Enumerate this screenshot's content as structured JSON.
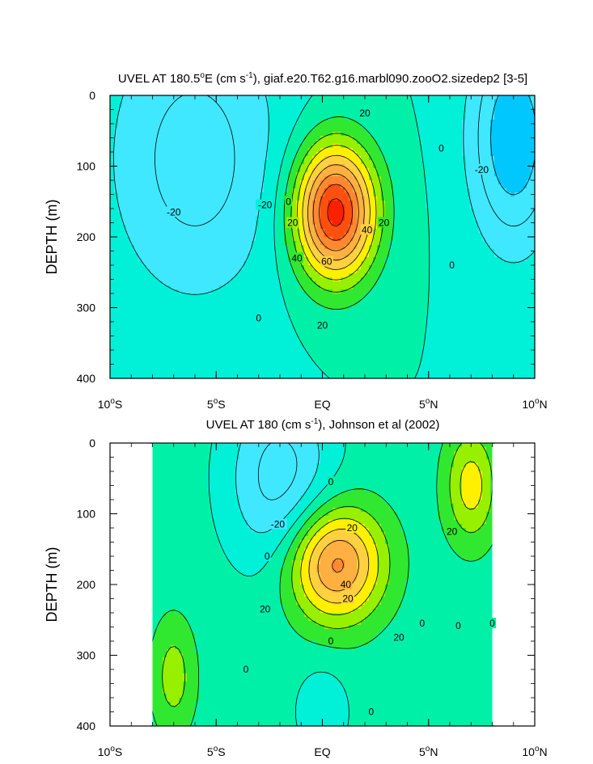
{
  "colors": {
    "c_neg40": "#00c8ff",
    "c_neg20": "#40e8ff",
    "c_zero_neg": "#00f0d8",
    "c_zero_pos": "#00f0a8",
    "c_pos10": "#30e830",
    "c_pos20": "#96f000",
    "c_pos30": "#fff000",
    "c_pos40": "#ffd040",
    "c_pos50": "#ffb040",
    "c_pos60": "#ff8830",
    "c_pos70": "#ff5010",
    "c_pos80": "#ff2000"
  },
  "chart_data": [
    {
      "type": "contour",
      "title_prefix": "UVEL AT 180.5",
      "title_deg": "o",
      "title_mid": "E (cm s",
      "title_sup": "-1",
      "title_suffix": "), giaf.e20.T62.g16.marbl090.zooO2.sizedep2 [3-5]",
      "xlabel": "",
      "ylabel": "DEPTH (m)",
      "xlim": [
        -10,
        10
      ],
      "ylim": [
        400,
        0
      ],
      "xticks": [
        {
          "value": -10,
          "num": "10",
          "deg": "o",
          "hem": "S"
        },
        {
          "value": -5,
          "num": "5",
          "deg": "o",
          "hem": "S"
        },
        {
          "value": 0,
          "num": "EQ",
          "deg": "",
          "hem": ""
        },
        {
          "value": 5,
          "num": "5",
          "deg": "o",
          "hem": "N"
        },
        {
          "value": 10,
          "num": "10",
          "deg": "o",
          "hem": "N"
        }
      ],
      "yticks": [
        "0",
        "100",
        "200",
        "300",
        "400"
      ],
      "contour_interval": 10,
      "field": {
        "background": 0,
        "jets": [
          {
            "name": "EUC",
            "lon": 0.6,
            "depth": 165,
            "max": 85,
            "width_lon": 1.9,
            "width_depth": 95
          },
          {
            "name": "SEC_south",
            "lon": -6,
            "depth": 90,
            "max": -25,
            "width_lon": 4,
            "width_depth": 200
          },
          {
            "name": "SEC_north",
            "lon": 9,
            "depth": 60,
            "max": -40,
            "width_lon": 2,
            "width_depth": 150
          }
        ]
      },
      "contour_labels": [
        {
          "text": "20",
          "lon": 2.0,
          "depth": 25
        },
        {
          "text": "0",
          "lon": 5.6,
          "depth": 75
        },
        {
          "text": "-20",
          "lon": 7.5,
          "depth": 105
        },
        {
          "text": "-20",
          "lon": -7,
          "depth": 165
        },
        {
          "text": "-20",
          "lon": -2.7,
          "depth": 155
        },
        {
          "text": "0",
          "lon": -1.6,
          "depth": 150
        },
        {
          "text": "20",
          "lon": -1.4,
          "depth": 180
        },
        {
          "text": "40",
          "lon": 2.1,
          "depth": 190
        },
        {
          "text": "20",
          "lon": 2.9,
          "depth": 180
        },
        {
          "text": "40",
          "lon": -1.2,
          "depth": 230
        },
        {
          "text": "60",
          "lon": 0.2,
          "depth": 235
        },
        {
          "text": "0",
          "lon": 6.1,
          "depth": 240
        },
        {
          "text": "0",
          "lon": -3.0,
          "depth": 315
        },
        {
          "text": "20",
          "lon": 0.0,
          "depth": 325
        }
      ]
    },
    {
      "type": "contour",
      "title_prefix": "UVEL AT 180 (cm s",
      "title_deg": "",
      "title_mid": "",
      "title_sup": "-1",
      "title_suffix": "), Johnson et al (2002)",
      "xlabel": "",
      "ylabel": "DEPTH (m)",
      "xlim": [
        -10,
        10
      ],
      "ylim": [
        400,
        0
      ],
      "xticks": [
        {
          "value": -10,
          "num": "10",
          "deg": "o",
          "hem": "S"
        },
        {
          "value": -5,
          "num": "5",
          "deg": "o",
          "hem": "S"
        },
        {
          "value": 0,
          "num": "EQ",
          "deg": "",
          "hem": ""
        },
        {
          "value": 5,
          "num": "5",
          "deg": "o",
          "hem": "N"
        },
        {
          "value": 10,
          "num": "10",
          "deg": "o",
          "hem": "N"
        }
      ],
      "yticks": [
        "0",
        "100",
        "200",
        "300",
        "400"
      ],
      "contour_interval": 10,
      "data_extent_lon": [
        -8,
        8
      ],
      "field": {
        "background": 5,
        "jets": [
          {
            "name": "EUC",
            "lon": 0.6,
            "depth": 170,
            "max": 60,
            "width_lon": 2.2,
            "width_depth": 80
          },
          {
            "name": "SEC_south",
            "lon": -2,
            "depth": 50,
            "max": -30,
            "width_lon": 2.5,
            "width_depth": 130
          },
          {
            "name": "NECC",
            "lon": 7,
            "depth": 60,
            "max": 30,
            "width_lon": 1.2,
            "width_depth": 80
          },
          {
            "name": "SSCC",
            "lon": -7,
            "depth": 330,
            "max": 20,
            "width_lon": 1,
            "width_depth": 80
          },
          {
            "name": "NSCC_neg",
            "lon": 0,
            "depth": 380,
            "max": -15,
            "width_lon": 1.2,
            "width_depth": 60
          }
        ]
      },
      "contour_labels": [
        {
          "text": "0",
          "lon": 0.4,
          "depth": 55
        },
        {
          "text": "-20",
          "lon": -2.1,
          "depth": 115
        },
        {
          "text": "20",
          "lon": 1.4,
          "depth": 120
        },
        {
          "text": "20",
          "lon": 6.1,
          "depth": 125
        },
        {
          "text": "0",
          "lon": -2.6,
          "depth": 160
        },
        {
          "text": "40",
          "lon": 1.1,
          "depth": 200
        },
        {
          "text": "20",
          "lon": 1.2,
          "depth": 220
        },
        {
          "text": "20",
          "lon": -2.7,
          "depth": 235
        },
        {
          "text": "0",
          "lon": 4.7,
          "depth": 255
        },
        {
          "text": "0",
          "lon": 6.4,
          "depth": 258
        },
        {
          "text": "0",
          "lon": 8.0,
          "depth": 255
        },
        {
          "text": "20",
          "lon": 3.6,
          "depth": 275
        },
        {
          "text": "0",
          "lon": 0.4,
          "depth": 280
        },
        {
          "text": "0",
          "lon": -3.6,
          "depth": 320
        },
        {
          "text": "0",
          "lon": 2.3,
          "depth": 380
        }
      ]
    }
  ]
}
